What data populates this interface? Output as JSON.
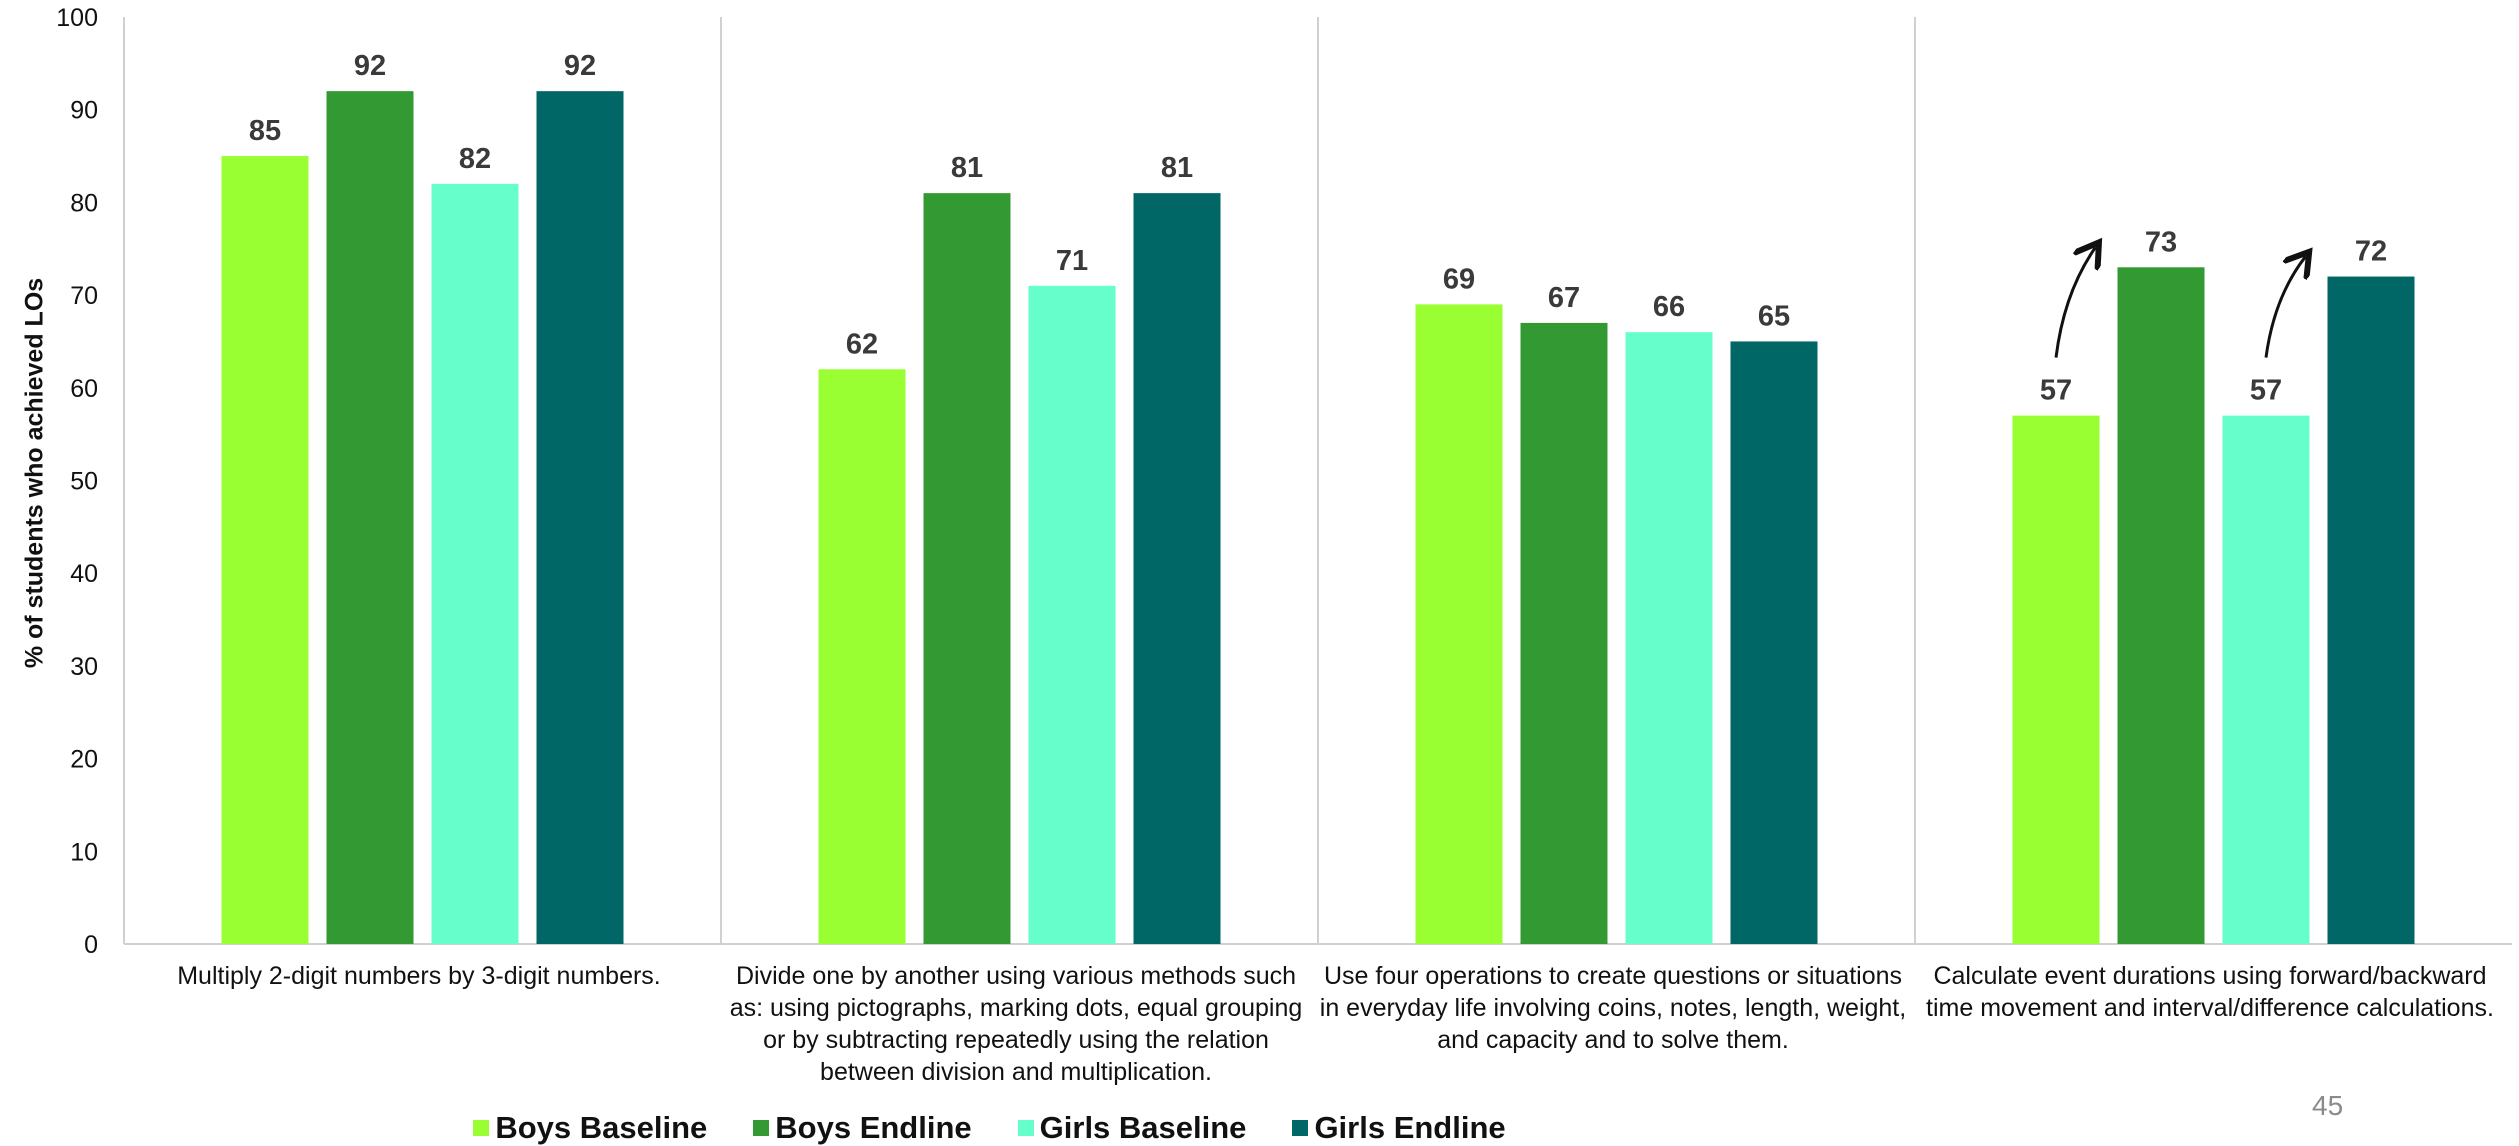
{
  "chart_data": {
    "type": "bar",
    "ylabel": "% of students who achieved LOs",
    "ylim": [
      0,
      100
    ],
    "yticks": [
      "0",
      "10",
      "20",
      "30",
      "40",
      "50",
      "60",
      "70",
      "80",
      "90",
      "100"
    ],
    "categories": [
      "Multiply 2-digit numbers by 3-digit numbers.",
      "Divide one by another using various methods such as: using pictographs, marking dots, equal grouping or by subtracting repeatedly using the relation between division and multiplication.",
      "Use four operations to create questions or situations in everyday life involving coins, notes, length, weight, and capacity and to solve them.",
      "Calculate event durations using forward/backward time movement and interval/difference calculations."
    ],
    "series": [
      {
        "name": "Boys Baseline",
        "color": "#99ff33",
        "values": [
          85,
          62,
          69,
          57
        ]
      },
      {
        "name": "Boys Endline",
        "color": "#339933",
        "values": [
          92,
          81,
          67,
          73
        ]
      },
      {
        "name": "Girls Baseline",
        "color": "#66ffcc",
        "values": [
          82,
          71,
          66,
          57
        ]
      },
      {
        "name": "Girls Endline",
        "color": "#006666",
        "values": [
          92,
          81,
          65,
          72
        ]
      }
    ],
    "grid": false,
    "legend_position": "bottom",
    "annotations": [
      "arrow-up-boys-category-4",
      "arrow-up-girls-category-4"
    ]
  },
  "page_number": "45"
}
